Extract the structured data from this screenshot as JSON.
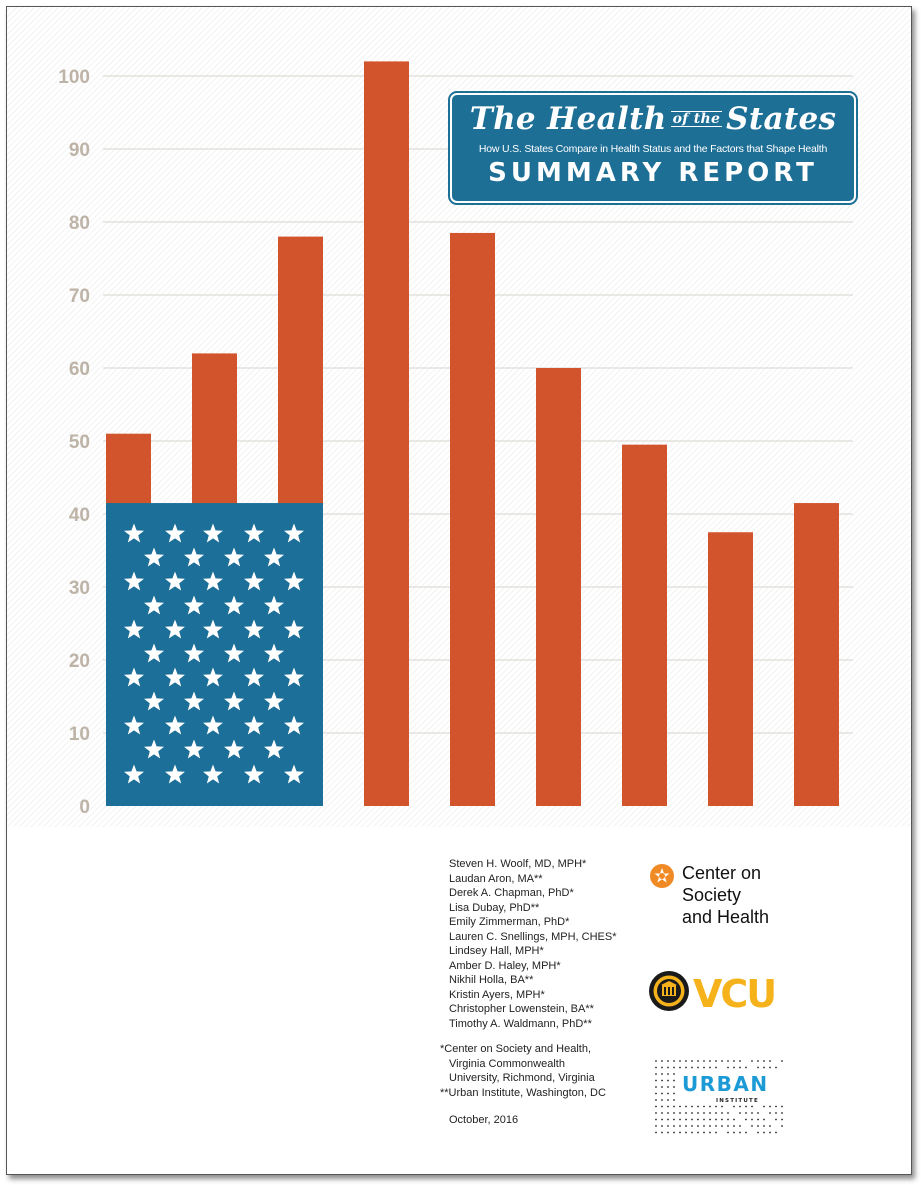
{
  "chart_data": {
    "type": "bar",
    "title": "",
    "xlabel": "",
    "ylabel": "",
    "ylim": [
      0,
      100
    ],
    "yticks": [
      0,
      10,
      20,
      30,
      40,
      50,
      60,
      70,
      80,
      90,
      100
    ],
    "values": [
      51,
      62,
      78,
      102,
      78.5,
      60,
      49.5,
      37.5,
      41.5
    ],
    "flag_value": 41.5,
    "colors": {
      "bar": "#d2542c",
      "flag": "#1b6f98",
      "grid": "#d8d4ce",
      "tick": "#bdb3a7",
      "star": "#ffffff"
    }
  },
  "banner": {
    "title_part1": "The Health",
    "title_small": "of the",
    "title_part2": "States",
    "subtitle": "How U.S. States Compare in Health Status and the Factors that Shape Health",
    "report": "SUMMARY REPORT",
    "color": "#1e6f96"
  },
  "authors": [
    "Steven H. Woolf, MD, MPH*",
    "Laudan Aron, MA**",
    "Derek A. Chapman, PhD*",
    "Lisa Dubay, PhD**",
    "Emily Zimmerman, PhD*",
    "Lauren C. Snellings, MPH, CHES*",
    "Lindsey Hall, MPH*",
    "Amber D. Haley, MPH*",
    "Nikhil Holla, BA**",
    "Kristin Ayers, MPH*",
    "Christopher Lowenstein, BA**",
    "Timothy A. Waldmann, PhD**"
  ],
  "affiliations": {
    "line1": "*Center on Society and Health,",
    "line2": "Virginia Commonwealth",
    "line3": "University, Richmond, Virginia",
    "line4": "**Urban Institute, Washington, DC"
  },
  "date": "October, 2016",
  "logos": {
    "csh_line1": "Center on",
    "csh_line2": "Society",
    "csh_line3": "and Health",
    "csh_color": "#f08a24",
    "vcu": "VCU",
    "vcu_color": "#f5b21b",
    "urban_name": "URBAN",
    "urban_sub": "INSTITUTE",
    "urban_color": "#1b9ad6"
  }
}
